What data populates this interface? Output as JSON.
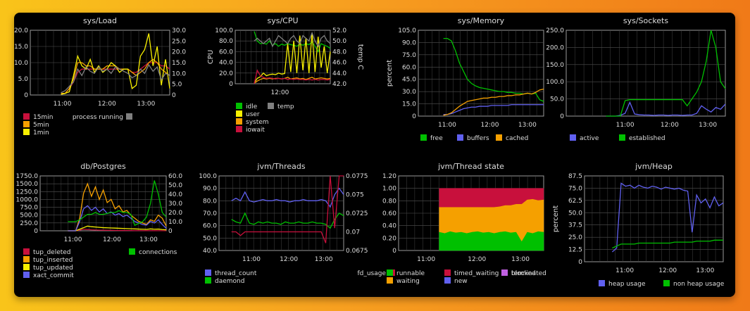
{
  "chart_data": [
    {
      "type": "line",
      "title": "sys/Load",
      "xticks": [
        "11:00",
        "12:00",
        "13:00"
      ],
      "y_left": {
        "range": [
          0,
          20
        ],
        "ticks": [
          "0",
          "5.0",
          "10.0",
          "15.0",
          "20.0"
        ]
      },
      "y_right": {
        "range": [
          0,
          30
        ],
        "ticks": [
          "0",
          "5.0",
          "10.0",
          "15.0",
          "20.0",
          "25.0",
          "30.0"
        ]
      },
      "series": [
        {
          "name": "15min",
          "color": "#c8103c",
          "axis": "left",
          "values": [
            0.5,
            0.5,
            2,
            4,
            7,
            8,
            8,
            8,
            8,
            8,
            8,
            8,
            8,
            8,
            8,
            8,
            8,
            7,
            7,
            8,
            9,
            10,
            10,
            10,
            9,
            9,
            8
          ]
        },
        {
          "name": "5min",
          "color": "#f5a000",
          "axis": "left",
          "values": [
            0.5,
            0.5,
            2,
            5,
            10,
            10,
            9,
            9,
            8,
            8,
            8,
            9,
            9,
            9,
            8,
            8,
            8,
            7,
            6,
            7,
            8,
            10,
            11,
            10,
            8,
            7,
            6
          ]
        },
        {
          "name": "1min",
          "color": "#f8f000",
          "axis": "left",
          "values": [
            0.2,
            0.5,
            1,
            6,
            12,
            9,
            8,
            11,
            7,
            9,
            7,
            8,
            10,
            9,
            7,
            8,
            8,
            2,
            3,
            12,
            14,
            19,
            9,
            15,
            3,
            11,
            2
          ]
        },
        {
          "name": "process running",
          "color": "#808080",
          "axis": "right",
          "values": [
            1,
            2,
            4,
            6,
            12,
            9,
            13,
            11,
            10,
            13,
            11,
            12,
            10,
            13,
            12,
            11,
            10,
            8,
            9,
            12,
            10,
            14,
            11,
            13,
            7,
            10,
            9
          ]
        }
      ]
    },
    {
      "type": "line",
      "title": "sys/CPU",
      "xticks": [
        "12:00"
      ],
      "y_left": {
        "label": "CPU",
        "range": [
          0,
          100
        ],
        "ticks": [
          "0",
          "20.0",
          "40.0",
          "60.0",
          "80.0",
          "100.0"
        ]
      },
      "y_right": {
        "label": "temp C",
        "range": [
          42,
          52
        ],
        "ticks": [
          "42.0",
          "44.0",
          "46.0",
          "48.0",
          "50.0",
          "52.0"
        ]
      },
      "series": [
        {
          "name": "idle",
          "color": "#00c000",
          "axis": "left",
          "values": [
            98,
            80,
            75,
            76,
            74,
            80,
            72,
            75,
            70,
            74,
            72,
            75,
            73,
            72,
            70,
            74,
            72,
            75,
            73,
            78,
            70,
            60,
            75,
            72,
            70,
            66
          ]
        },
        {
          "name": "user",
          "color": "#f8f000",
          "axis": "left",
          "values": [
            2,
            10,
            13,
            20,
            15,
            17,
            18,
            17,
            20,
            18,
            19,
            75,
            22,
            80,
            20,
            90,
            25,
            85,
            20,
            95,
            22,
            88,
            30,
            70,
            20,
            60
          ]
        },
        {
          "name": "system",
          "color": "#f5a000",
          "axis": "left",
          "values": [
            1,
            5,
            8,
            10,
            9,
            10,
            9,
            10,
            10,
            9,
            10,
            12,
            9,
            10,
            11,
            9,
            10,
            8,
            10,
            12,
            9,
            10,
            11,
            10,
            9,
            10
          ]
        },
        {
          "name": "iowait",
          "color": "#c8103c",
          "axis": "left",
          "values": [
            0,
            25,
            15,
            12,
            10,
            11,
            10,
            9,
            10,
            9,
            10,
            8,
            9,
            8,
            9,
            8,
            8,
            7,
            8,
            7,
            8,
            7,
            8,
            8,
            7,
            8
          ]
        },
        {
          "name": "temp",
          "color": "#808080",
          "axis": "right",
          "values": [
            50,
            50.5,
            50,
            49.5,
            50,
            50.5,
            49,
            50,
            51,
            50.5,
            50,
            49.5,
            50.5,
            51,
            50,
            49.5,
            51,
            50.5,
            50,
            51.5,
            50,
            49,
            50.5,
            51,
            50,
            49.5
          ]
        }
      ]
    },
    {
      "type": "line",
      "title": "sys/Memory",
      "xticks": [
        "11:00",
        "12:00",
        "13:00"
      ],
      "y_left": {
        "label": "percent",
        "range": [
          0,
          105
        ],
        "ticks": [
          "0",
          "15.0",
          "30.0",
          "45.0",
          "60.0",
          "75.0",
          "90.0",
          "105.0"
        ]
      },
      "series": [
        {
          "name": "free",
          "color": "#00c000",
          "values": [
            95,
            95,
            92,
            80,
            65,
            55,
            45,
            40,
            37,
            35,
            34,
            33,
            32,
            31,
            30,
            30,
            29,
            29,
            28,
            28,
            27,
            28,
            27,
            28,
            20,
            18
          ]
        },
        {
          "name": "buffers",
          "color": "#6060f0",
          "values": [
            2,
            2,
            3,
            5,
            7,
            9,
            10,
            11,
            11,
            12,
            12,
            12,
            13,
            13,
            13,
            13,
            13,
            14,
            14,
            14,
            14,
            14,
            14,
            14,
            14,
            14
          ]
        },
        {
          "name": "cached",
          "color": "#f5a000",
          "values": [
            1,
            2,
            4,
            8,
            12,
            15,
            18,
            19,
            20,
            21,
            22,
            22,
            23,
            23,
            24,
            24,
            25,
            25,
            26,
            26,
            27,
            28,
            27,
            29,
            32,
            33
          ]
        }
      ]
    },
    {
      "type": "line",
      "title": "sys/Sockets",
      "xticks": [
        "11:00",
        "12:00",
        "13:00"
      ],
      "y_left": {
        "range": [
          0,
          250
        ],
        "ticks": [
          "0",
          "50.0",
          "100.0",
          "150.0",
          "200.0",
          "250.0"
        ]
      },
      "series": [
        {
          "name": "active",
          "color": "#6060f0",
          "values": [
            0,
            0,
            0,
            2,
            8,
            40,
            6,
            4,
            3,
            3,
            2,
            3,
            3,
            2,
            3,
            3,
            2,
            3,
            3,
            8,
            30,
            20,
            12,
            25,
            20,
            35
          ]
        },
        {
          "name": "established",
          "color": "#00c000",
          "values": [
            0,
            0,
            0,
            0,
            45,
            48,
            48,
            48,
            48,
            48,
            48,
            48,
            48,
            48,
            48,
            48,
            48,
            30,
            50,
            70,
            100,
            160,
            270,
            200,
            100,
            80
          ]
        }
      ]
    },
    {
      "type": "line",
      "title": "db/Postgres",
      "xticks": [
        "11:00",
        "12:00",
        "13:00"
      ],
      "y_left": {
        "range": [
          0,
          1750
        ],
        "ticks": [
          "0",
          "250.0",
          "500.0",
          "750.0",
          "1000.0",
          "1250.0",
          "1500.0",
          "1750.0"
        ]
      },
      "y_right": {
        "range": [
          0,
          60
        ],
        "ticks": [
          "0",
          "10.0",
          "20.0",
          "30.0",
          "40.0",
          "50.0",
          "60.0"
        ]
      },
      "series": [
        {
          "name": "tup_deleted",
          "color": "#c8103c",
          "axis": "left",
          "values": [
            0,
            0,
            0,
            20,
            50,
            40,
            30,
            25,
            20,
            18,
            15,
            15,
            12,
            10,
            10,
            8,
            8,
            6,
            5,
            5,
            4,
            5,
            4,
            3,
            3,
            2
          ]
        },
        {
          "name": "tup_inserted",
          "color": "#f5a000",
          "axis": "left",
          "values": [
            0,
            0,
            0,
            400,
            1200,
            1500,
            1100,
            1400,
            1000,
            1300,
            900,
            1000,
            700,
            800,
            600,
            650,
            500,
            400,
            300,
            250,
            200,
            350,
            300,
            500,
            400,
            150
          ]
        },
        {
          "name": "tup_updated",
          "color": "#f8f000",
          "axis": "left",
          "values": [
            0,
            0,
            0,
            50,
            100,
            150,
            130,
            120,
            110,
            100,
            95,
            90,
            85,
            80,
            75,
            70,
            65,
            60,
            55,
            50,
            45,
            60,
            50,
            55,
            40,
            30
          ]
        },
        {
          "name": "xact_commit",
          "color": "#6060f0",
          "axis": "left",
          "values": [
            0,
            0,
            0,
            300,
            700,
            800,
            650,
            750,
            600,
            700,
            550,
            600,
            500,
            550,
            450,
            500,
            400,
            300,
            250,
            200,
            180,
            300,
            250,
            350,
            200,
            80
          ]
        },
        {
          "name": "connections",
          "color": "#00c000",
          "axis": "right",
          "values": [
            10,
            10,
            10,
            12,
            15,
            18,
            18,
            20,
            18,
            18,
            19,
            20,
            20,
            22,
            20,
            20,
            18,
            6,
            8,
            10,
            15,
            30,
            55,
            40,
            20,
            15
          ]
        }
      ]
    },
    {
      "type": "line",
      "title": "jvm/Threads",
      "xticks": [
        "11:00",
        "12:00",
        "13:00"
      ],
      "y_left": {
        "range": [
          40,
          100
        ],
        "ticks": [
          "40.0",
          "50.0",
          "60.0",
          "70.0",
          "80.0",
          "90.0",
          "100.0"
        ]
      },
      "y_right": {
        "range": [
          0.0675,
          0.0775
        ],
        "ticks": [
          "0.0675",
          "0.07",
          "0.0725",
          "0.075",
          "0.0775"
        ]
      },
      "series": [
        {
          "name": "thread_count",
          "color": "#6060f0",
          "axis": "left",
          "values": [
            80,
            82,
            80,
            87,
            80,
            79,
            80,
            81,
            80,
            80,
            81,
            80,
            80,
            79,
            80,
            80,
            81,
            80,
            80,
            80,
            81,
            80,
            75,
            85,
            90,
            85
          ]
        },
        {
          "name": "daemond",
          "color": "#00c000",
          "axis": "left",
          "values": [
            65,
            63,
            62,
            70,
            62,
            61,
            63,
            62,
            63,
            62,
            62,
            61,
            63,
            62,
            62,
            63,
            62,
            62,
            63,
            62,
            62,
            61,
            58,
            65,
            70,
            68
          ]
        },
        {
          "name": "fd_usage",
          "color": "#c8103c",
          "axis": "right",
          "values": [
            0.07,
            0.07,
            0.0695,
            0.07,
            0.07,
            0.07,
            0.07,
            0.07,
            0.07,
            0.07,
            0.07,
            0.07,
            0.07,
            0.07,
            0.07,
            0.07,
            0.07,
            0.07,
            0.07,
            0.07,
            0.07,
            0.0685,
            0.0775,
            0.0705,
            0.0775,
            0.0775
          ]
        }
      ]
    },
    {
      "type": "area",
      "title": "jvm/Thread state",
      "xticks": [
        "11:00",
        "12:00",
        "13:00"
      ],
      "y_left": {
        "range": [
          0,
          1.2
        ],
        "ticks": [
          "0",
          "0.20",
          "0.40",
          "0.60",
          "0.80",
          "1.00",
          "1.20"
        ]
      },
      "stacked": true,
      "series": [
        {
          "name": "runnable",
          "color": "#00c000",
          "values": [
            0.3,
            0.28,
            0.31,
            0.29,
            0.3,
            0.28,
            0.3,
            0.31,
            0.29,
            0.3,
            0.28,
            0.3,
            0.31,
            0.29,
            0.3,
            0.15,
            0.3,
            0.28,
            0.31,
            0.3
          ]
        },
        {
          "name": "waiting",
          "color": "#f5a000",
          "values": [
            0.4,
            0.42,
            0.39,
            0.41,
            0.4,
            0.42,
            0.4,
            0.39,
            0.41,
            0.4,
            0.42,
            0.41,
            0.42,
            0.44,
            0.45,
            0.6,
            0.52,
            0.55,
            0.5,
            0.52
          ]
        },
        {
          "name": "timed_waiting",
          "color": "#c8103c",
          "values": [
            0.3,
            0.3,
            0.3,
            0.3,
            0.3,
            0.3,
            0.3,
            0.3,
            0.3,
            0.3,
            0.3,
            0.29,
            0.27,
            0.27,
            0.25,
            0.25,
            0.18,
            0.17,
            0.19,
            0.18
          ]
        },
        {
          "name": "new",
          "color": "#6060f0",
          "values": []
        },
        {
          "name": "blocked",
          "color": "#f8f000",
          "values": []
        },
        {
          "name": "terminated",
          "color": "#c060e0",
          "values": []
        }
      ]
    },
    {
      "type": "line",
      "title": "jvm/Heap",
      "xticks": [
        "11:00",
        "12:00",
        "13:00"
      ],
      "y_left": {
        "label": "percent",
        "range": [
          0,
          87.5
        ],
        "ticks": [
          "0",
          "12.5",
          "25.0",
          "37.5",
          "50.0",
          "62.5",
          "75.0",
          "87.5"
        ]
      },
      "series": [
        {
          "name": "heap usage",
          "color": "#6060f0",
          "values": [
            10,
            14,
            80,
            77,
            78,
            75,
            78,
            76,
            75,
            77,
            76,
            74,
            76,
            75,
            74,
            75,
            73,
            72,
            30,
            68,
            60,
            64,
            55,
            66,
            57,
            60
          ]
        },
        {
          "name": "non heap usage",
          "color": "#00c000",
          "values": [
            14,
            16,
            18,
            18,
            18,
            18,
            19,
            19,
            19,
            19,
            19,
            19,
            19,
            19,
            20,
            20,
            20,
            20,
            20,
            21,
            21,
            21,
            21,
            22,
            22,
            22
          ]
        }
      ]
    }
  ]
}
